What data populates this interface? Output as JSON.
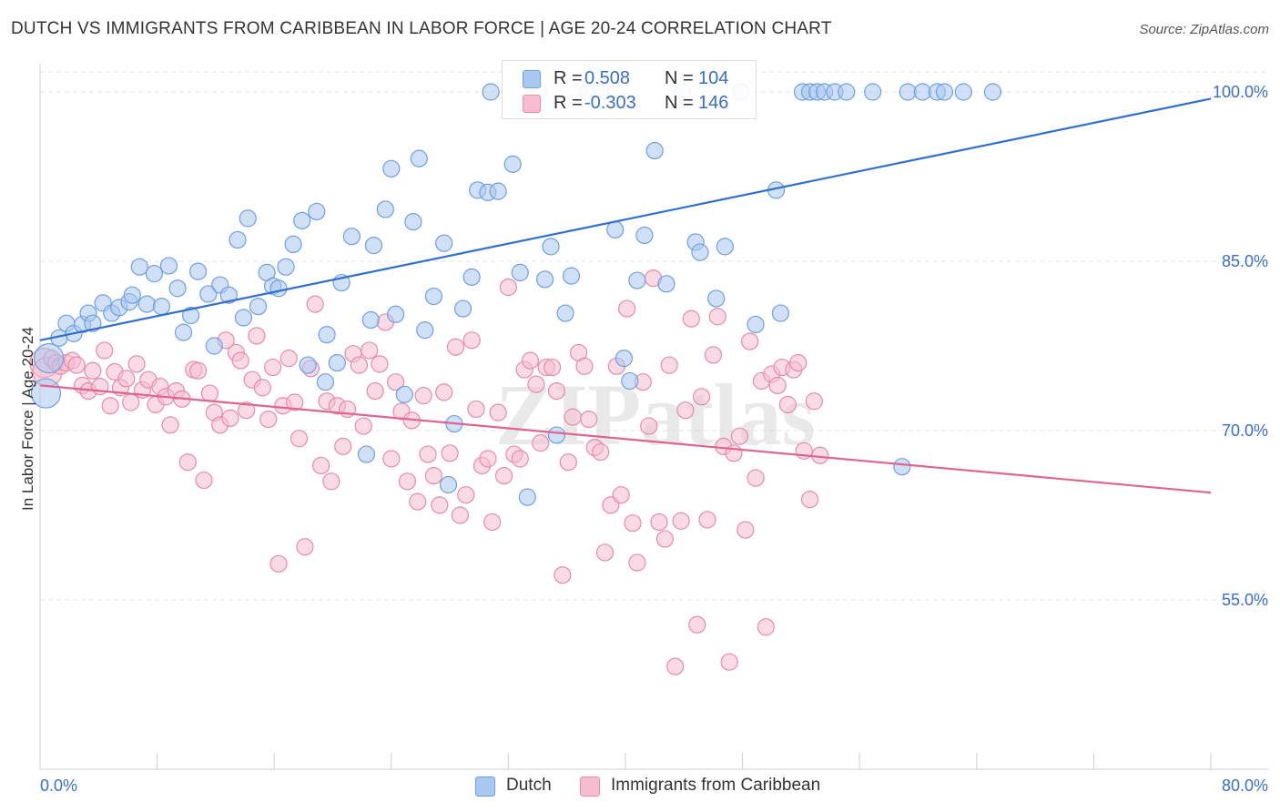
{
  "title": "DUTCH VS IMMIGRANTS FROM CARIBBEAN IN LABOR FORCE | AGE 20-24 CORRELATION CHART",
  "source": "Source: ZipAtlas.com",
  "watermark": "ZIPatlas",
  "legend": {
    "rows": [
      {
        "r_label": "R =",
        "r_value": "0.508",
        "n_label": "N =",
        "n_value": "104"
      },
      {
        "r_label": "R =",
        "r_value": "-0.303",
        "n_label": "N =",
        "n_value": "146"
      }
    ]
  },
  "colors": {
    "dutch_fill": "#a9c8f0",
    "dutch_stroke": "#6f9fe0",
    "dutch_line": "#2f6fd0",
    "carib_fill": "#f6bdd0",
    "carib_stroke": "#e88aab",
    "carib_line": "#e06492",
    "tick_label": "#3a6fc4",
    "grid": "#e3e3e3"
  },
  "chart_data": {
    "type": "scatter",
    "title": "DUTCH VS IMMIGRANTS FROM CARIBBEAN IN LABOR FORCE | AGE 20-24 CORRELATION CHART",
    "xlabel": "",
    "ylabel": "In Labor Force | Age 20-24",
    "xlim": [
      0,
      80
    ],
    "ylim": [
      40,
      102.5
    ],
    "x_tick_labels": [
      "0.0%",
      "80.0%"
    ],
    "y_ticks": [
      55,
      70,
      85,
      100
    ],
    "y_tick_labels": [
      "55.0%",
      "70.0%",
      "85.0%",
      "100.0%"
    ],
    "grid": true,
    "legend_position": "top-center",
    "series": [
      {
        "name": "Dutch",
        "r": 0.508,
        "n": 104,
        "trend": {
          "x": [
            0,
            80
          ],
          "y": [
            78.0,
            99.4
          ]
        },
        "points": [
          [
            0.4,
            73.3
          ],
          [
            0.6,
            76.4
          ],
          [
            1.3,
            78.2
          ],
          [
            1.8,
            79.5
          ],
          [
            2.3,
            78.6
          ],
          [
            2.9,
            79.4
          ],
          [
            3.3,
            80.4
          ],
          [
            3.6,
            79.5
          ],
          [
            4.3,
            81.3
          ],
          [
            4.9,
            80.4
          ],
          [
            5.4,
            80.9
          ],
          [
            6.1,
            81.4
          ],
          [
            6.3,
            82.0
          ],
          [
            6.8,
            84.5
          ],
          [
            7.3,
            81.2
          ],
          [
            7.8,
            83.9
          ],
          [
            8.3,
            81.0
          ],
          [
            8.8,
            84.6
          ],
          [
            9.4,
            82.6
          ],
          [
            9.8,
            78.7
          ],
          [
            10.3,
            80.2
          ],
          [
            10.8,
            84.1
          ],
          [
            11.5,
            82.1
          ],
          [
            11.9,
            77.5
          ],
          [
            12.3,
            82.9
          ],
          [
            12.9,
            82.0
          ],
          [
            13.5,
            86.9
          ],
          [
            13.9,
            80.0
          ],
          [
            14.2,
            88.8
          ],
          [
            14.9,
            81.0
          ],
          [
            15.5,
            84.0
          ],
          [
            15.9,
            82.8
          ],
          [
            16.3,
            82.6
          ],
          [
            16.8,
            84.5
          ],
          [
            17.3,
            86.5
          ],
          [
            17.9,
            88.6
          ],
          [
            18.3,
            75.8
          ],
          [
            18.9,
            89.4
          ],
          [
            19.5,
            74.3
          ],
          [
            19.6,
            78.5
          ],
          [
            20.3,
            76.0
          ],
          [
            20.6,
            83.1
          ],
          [
            21.3,
            87.2
          ],
          [
            22.3,
            67.9
          ],
          [
            22.6,
            79.8
          ],
          [
            22.8,
            86.4
          ],
          [
            23.6,
            89.6
          ],
          [
            24.0,
            93.2
          ],
          [
            24.3,
            80.3
          ],
          [
            24.9,
            73.2
          ],
          [
            25.5,
            88.5
          ],
          [
            25.9,
            94.1
          ],
          [
            26.3,
            78.9
          ],
          [
            26.9,
            81.9
          ],
          [
            27.6,
            86.6
          ],
          [
            27.9,
            65.2
          ],
          [
            28.3,
            70.6
          ],
          [
            28.9,
            80.8
          ],
          [
            29.5,
            83.6
          ],
          [
            29.9,
            91.3
          ],
          [
            30.6,
            91.1
          ],
          [
            30.8,
            100.0
          ],
          [
            31.3,
            91.2
          ],
          [
            32.3,
            93.6
          ],
          [
            32.8,
            84.0
          ],
          [
            33.3,
            64.1
          ],
          [
            34.1,
            100.0
          ],
          [
            34.5,
            83.4
          ],
          [
            34.9,
            86.3
          ],
          [
            35.3,
            69.6
          ],
          [
            35.9,
            80.4
          ],
          [
            36.3,
            83.7
          ],
          [
            37.4,
            100.0
          ],
          [
            38.3,
            100.0
          ],
          [
            39.3,
            87.8
          ],
          [
            39.9,
            76.4
          ],
          [
            40.3,
            74.4
          ],
          [
            40.8,
            83.3
          ],
          [
            41.3,
            87.3
          ],
          [
            42.0,
            94.8
          ],
          [
            42.8,
            83.0
          ],
          [
            43.9,
            100.0
          ],
          [
            44.8,
            86.7
          ],
          [
            45.1,
            85.8
          ],
          [
            46.2,
            81.7
          ],
          [
            46.8,
            86.3
          ],
          [
            47.9,
            100.0
          ],
          [
            48.9,
            79.4
          ],
          [
            50.3,
            91.3
          ],
          [
            50.6,
            80.4
          ],
          [
            52.1,
            100.0
          ],
          [
            52.6,
            100.0
          ],
          [
            53.1,
            100.0
          ],
          [
            53.6,
            100.0
          ],
          [
            54.3,
            100.0
          ],
          [
            55.1,
            100.0
          ],
          [
            56.9,
            100.0
          ],
          [
            58.9,
            66.8
          ],
          [
            59.3,
            100.0
          ],
          [
            60.3,
            100.0
          ],
          [
            61.3,
            100.0
          ],
          [
            61.8,
            100.0
          ],
          [
            63.1,
            100.0
          ],
          [
            65.1,
            100.0
          ]
        ]
      },
      {
        "name": "Immigrants from Caribbean",
        "r": -0.303,
        "n": 146,
        "trend": {
          "x": [
            0,
            80
          ],
          "y": [
            74.0,
            64.5
          ]
        },
        "points": [
          [
            0.3,
            76.0
          ],
          [
            0.5,
            75.2
          ],
          [
            0.8,
            76.4
          ],
          [
            1.1,
            76.0
          ],
          [
            1.4,
            75.7
          ],
          [
            1.8,
            76.0
          ],
          [
            2.2,
            76.2
          ],
          [
            2.5,
            75.8
          ],
          [
            2.9,
            74.0
          ],
          [
            3.3,
            73.5
          ],
          [
            3.6,
            75.3
          ],
          [
            4.1,
            73.9
          ],
          [
            4.4,
            77.1
          ],
          [
            4.8,
            72.2
          ],
          [
            5.1,
            75.2
          ],
          [
            5.5,
            73.8
          ],
          [
            5.9,
            74.6
          ],
          [
            6.2,
            72.5
          ],
          [
            6.6,
            75.9
          ],
          [
            7.0,
            73.6
          ],
          [
            7.4,
            74.5
          ],
          [
            7.9,
            72.3
          ],
          [
            8.2,
            73.9
          ],
          [
            8.6,
            73.0
          ],
          [
            8.9,
            70.5
          ],
          [
            9.3,
            73.5
          ],
          [
            9.7,
            72.8
          ],
          [
            10.1,
            67.2
          ],
          [
            10.5,
            75.4
          ],
          [
            10.8,
            75.3
          ],
          [
            11.2,
            65.6
          ],
          [
            11.6,
            73.3
          ],
          [
            11.9,
            71.6
          ],
          [
            12.3,
            70.5
          ],
          [
            12.7,
            78.0
          ],
          [
            13.0,
            71.1
          ],
          [
            13.4,
            76.9
          ],
          [
            13.7,
            76.2
          ],
          [
            14.1,
            71.8
          ],
          [
            14.5,
            74.5
          ],
          [
            14.8,
            78.4
          ],
          [
            15.2,
            73.8
          ],
          [
            15.6,
            71.0
          ],
          [
            15.9,
            75.6
          ],
          [
            16.3,
            58.2
          ],
          [
            16.6,
            72.2
          ],
          [
            17.0,
            76.4
          ],
          [
            17.4,
            72.5
          ],
          [
            17.7,
            69.3
          ],
          [
            18.1,
            59.7
          ],
          [
            18.5,
            75.5
          ],
          [
            18.8,
            81.2
          ],
          [
            19.2,
            66.9
          ],
          [
            19.6,
            72.6
          ],
          [
            19.9,
            65.5
          ],
          [
            20.3,
            72.2
          ],
          [
            20.7,
            68.6
          ],
          [
            21.0,
            71.9
          ],
          [
            21.4,
            76.8
          ],
          [
            21.8,
            75.8
          ],
          [
            22.1,
            70.4
          ],
          [
            22.5,
            77.1
          ],
          [
            22.9,
            73.5
          ],
          [
            23.2,
            75.9
          ],
          [
            23.6,
            79.6
          ],
          [
            24.0,
            67.5
          ],
          [
            24.3,
            74.3
          ],
          [
            24.7,
            71.7
          ],
          [
            25.1,
            65.5
          ],
          [
            25.4,
            70.9
          ],
          [
            25.8,
            63.7
          ],
          [
            26.2,
            73.1
          ],
          [
            26.5,
            67.9
          ],
          [
            26.9,
            66.0
          ],
          [
            27.3,
            63.4
          ],
          [
            27.6,
            73.4
          ],
          [
            28.0,
            68.0
          ],
          [
            28.4,
            77.4
          ],
          [
            28.7,
            62.5
          ],
          [
            29.1,
            64.3
          ],
          [
            29.5,
            78.0
          ],
          [
            29.8,
            71.9
          ],
          [
            30.2,
            66.9
          ],
          [
            30.6,
            67.5
          ],
          [
            30.9,
            61.9
          ],
          [
            31.3,
            71.6
          ],
          [
            31.7,
            66.0
          ],
          [
            32.0,
            82.7
          ],
          [
            32.4,
            67.9
          ],
          [
            32.8,
            67.5
          ],
          [
            33.1,
            75.4
          ],
          [
            33.5,
            76.2
          ],
          [
            33.9,
            74.1
          ],
          [
            34.2,
            68.9
          ],
          [
            34.6,
            75.6
          ],
          [
            35.0,
            75.6
          ],
          [
            35.3,
            73.5
          ],
          [
            35.7,
            57.2
          ],
          [
            36.1,
            67.2
          ],
          [
            36.4,
            71.2
          ],
          [
            36.8,
            76.9
          ],
          [
            37.2,
            75.7
          ],
          [
            37.5,
            71.0
          ],
          [
            37.9,
            68.5
          ],
          [
            38.3,
            68.1
          ],
          [
            38.6,
            59.2
          ],
          [
            39.0,
            63.4
          ],
          [
            39.4,
            75.7
          ],
          [
            39.7,
            64.3
          ],
          [
            40.1,
            80.8
          ],
          [
            40.5,
            61.8
          ],
          [
            40.8,
            58.3
          ],
          [
            41.2,
            74.3
          ],
          [
            41.6,
            70.4
          ],
          [
            41.9,
            83.5
          ],
          [
            42.3,
            61.9
          ],
          [
            42.7,
            60.4
          ],
          [
            43.0,
            75.8
          ],
          [
            43.4,
            49.1
          ],
          [
            43.8,
            62.0
          ],
          [
            44.1,
            71.8
          ],
          [
            44.5,
            79.9
          ],
          [
            44.9,
            52.8
          ],
          [
            45.2,
            73.0
          ],
          [
            45.6,
            62.1
          ],
          [
            46.0,
            76.7
          ],
          [
            46.3,
            80.1
          ],
          [
            46.7,
            68.6
          ],
          [
            47.1,
            49.5
          ],
          [
            47.4,
            68.0
          ],
          [
            47.8,
            69.5
          ],
          [
            48.2,
            61.2
          ],
          [
            48.5,
            77.9
          ],
          [
            48.9,
            65.8
          ],
          [
            49.3,
            74.4
          ],
          [
            49.6,
            52.6
          ],
          [
            50.0,
            75.0
          ],
          [
            50.4,
            74.0
          ],
          [
            50.7,
            75.6
          ],
          [
            51.1,
            72.3
          ],
          [
            51.5,
            75.4
          ],
          [
            51.8,
            76.0
          ],
          [
            52.2,
            68.2
          ],
          [
            52.6,
            63.9
          ],
          [
            52.9,
            72.6
          ],
          [
            53.3,
            67.8
          ]
        ]
      }
    ]
  },
  "bottom_legend": [
    {
      "label": "Dutch"
    },
    {
      "label": "Immigrants from Caribbean"
    }
  ]
}
